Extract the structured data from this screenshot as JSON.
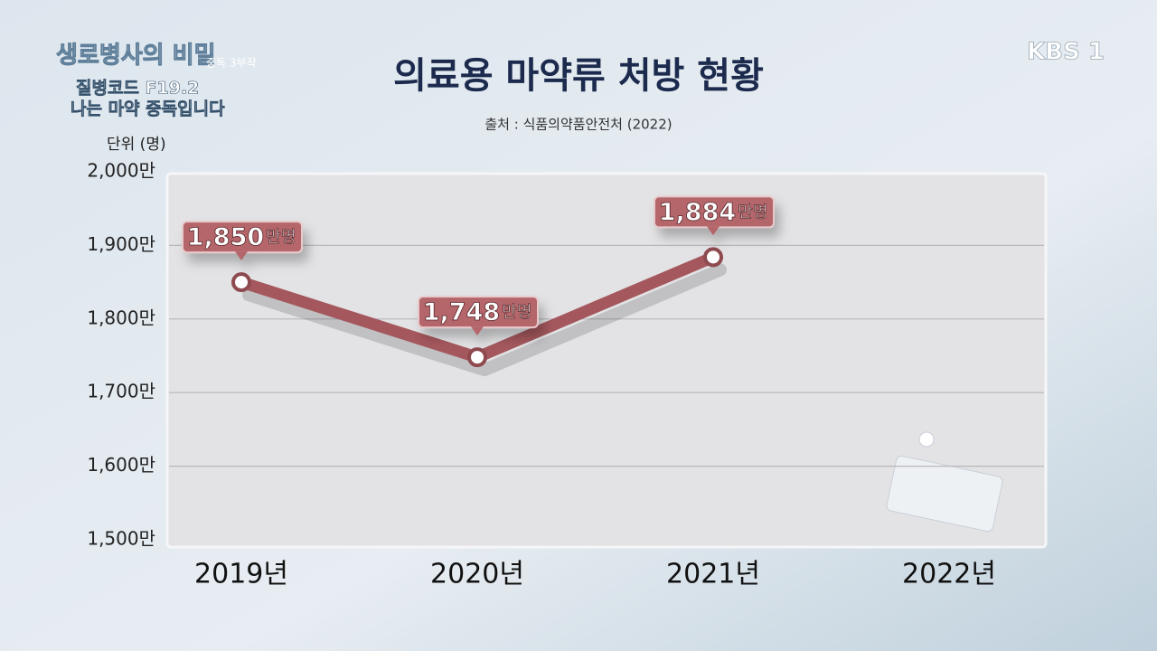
{
  "overlay": {
    "program": "생로병사의 비밀",
    "series_note": "중독 3부작",
    "episode_line1": "질병코드 F19.2",
    "episode_line2": "나는 마약 중독입니다",
    "logo": "KBS 1"
  },
  "chart_data": {
    "type": "line",
    "title": "의료용 마약류 처방 현황",
    "source": "출처 : 식품의약품안전처 (2022)",
    "y_label": "단위 (명)",
    "categories": [
      "2019년",
      "2020년",
      "2021년",
      "2022년"
    ],
    "values": [
      1850,
      1748,
      1884,
      null
    ],
    "value_labels": [
      "1,850",
      "1,748",
      "1,884",
      null
    ],
    "value_label_suffix": "만명",
    "color": "#a4585d",
    "ylim": [
      1500,
      2000
    ],
    "yticks": [
      {
        "value": 1500,
        "label": "1,500만"
      },
      {
        "value": 1600,
        "label": "1,600만"
      },
      {
        "value": 1700,
        "label": "1,700만"
      },
      {
        "value": 1800,
        "label": "1,800만"
      },
      {
        "value": 1900,
        "label": "1,900만"
      },
      {
        "value": 2000,
        "label": "2,000만"
      }
    ],
    "grid": true
  }
}
